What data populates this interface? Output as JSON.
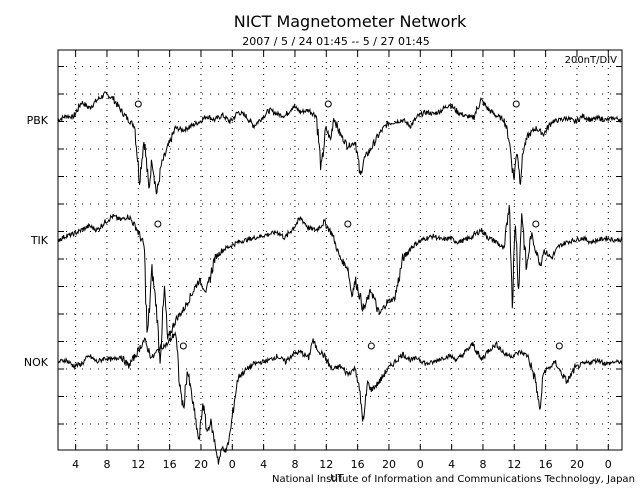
{
  "title": "NICT Magnetometer Network",
  "subtitle": "2007 / 5 / 24   01:45 --  5 / 27   01:45",
  "scale_label": "200nT/DIV",
  "footer": "National Institute of Information and Communications Technology, Japan",
  "footer_mark": "UT",
  "chart_data": {
    "type": "line",
    "title": "NICT Magnetometer Network",
    "subtitle": "2007 / 5 / 24   01:45 --  5 / 27   01:45",
    "x_unit": "UT",
    "x_range_hours": [
      0,
      72
    ],
    "x_tick_labels": [
      "4",
      "8",
      "12",
      "16",
      "20",
      "0",
      "4",
      "8",
      "12",
      "16",
      "20",
      "0",
      "4",
      "8",
      "12",
      "16",
      "20",
      "0"
    ],
    "x_tick_hours": [
      2.25,
      6.25,
      10.25,
      14.25,
      18.25,
      22.25,
      26.25,
      30.25,
      34.25,
      38.25,
      42.25,
      46.25,
      50.25,
      54.25,
      58.25,
      62.25,
      66.25,
      70.25
    ],
    "y_scale": "200nT/DIV",
    "grid": true,
    "series": [
      {
        "name": "PBK",
        "marker_hours": [
          10.25,
          34.5,
          58.5
        ],
        "points": [
          [
            0,
            0
          ],
          [
            1,
            4
          ],
          [
            2,
            3
          ],
          [
            3,
            18
          ],
          [
            4,
            12
          ],
          [
            5,
            20
          ],
          [
            6,
            26
          ],
          [
            7,
            22
          ],
          [
            8,
            10
          ],
          [
            9,
            0
          ],
          [
            9.8,
            -6
          ],
          [
            10.4,
            -60
          ],
          [
            11,
            -18
          ],
          [
            11.6,
            -70
          ],
          [
            12,
            -38
          ],
          [
            12.6,
            -75
          ],
          [
            13.2,
            -45
          ],
          [
            14,
            -28
          ],
          [
            15,
            -8
          ],
          [
            16,
            -10
          ],
          [
            17,
            -6
          ],
          [
            18,
            -2
          ],
          [
            19,
            4
          ],
          [
            20,
            0
          ],
          [
            21,
            5
          ],
          [
            22,
            -2
          ],
          [
            23,
            8
          ],
          [
            24,
            4
          ],
          [
            25,
            -6
          ],
          [
            26,
            2
          ],
          [
            27,
            10
          ],
          [
            28,
            6
          ],
          [
            29,
            4
          ],
          [
            30,
            14
          ],
          [
            31,
            8
          ],
          [
            32,
            10
          ],
          [
            33,
            4
          ],
          [
            33.6,
            -50
          ],
          [
            34.2,
            -8
          ],
          [
            34.8,
            -20
          ],
          [
            35.2,
            3
          ],
          [
            36,
            -14
          ],
          [
            37,
            -26
          ],
          [
            38,
            -22
          ],
          [
            38.6,
            -58
          ],
          [
            39,
            -40
          ],
          [
            40,
            -28
          ],
          [
            41,
            -14
          ],
          [
            42,
            -4
          ],
          [
            43,
            -2
          ],
          [
            44,
            0
          ],
          [
            45,
            -6
          ],
          [
            46,
            4
          ],
          [
            47,
            8
          ],
          [
            48,
            6
          ],
          [
            49,
            10
          ],
          [
            50,
            16
          ],
          [
            51,
            8
          ],
          [
            52,
            4
          ],
          [
            53,
            2
          ],
          [
            54,
            20
          ],
          [
            55,
            10
          ],
          [
            56,
            4
          ],
          [
            57,
            0
          ],
          [
            57.6,
            -20
          ],
          [
            58.2,
            -60
          ],
          [
            58.6,
            -28
          ],
          [
            59,
            -62
          ],
          [
            59.4,
            -30
          ],
          [
            60,
            -16
          ],
          [
            61,
            -8
          ],
          [
            62,
            -14
          ],
          [
            63,
            -2
          ],
          [
            64,
            0
          ],
          [
            65,
            2
          ],
          [
            66,
            -2
          ],
          [
            67,
            4
          ],
          [
            68,
            0
          ],
          [
            69,
            2
          ],
          [
            70,
            0
          ],
          [
            71,
            2
          ],
          [
            72,
            0
          ]
        ]
      },
      {
        "name": "TIK",
        "marker_hours": [
          12.75,
          37.0,
          61.0
        ],
        "points": [
          [
            0,
            0
          ],
          [
            1,
            4
          ],
          [
            2,
            6
          ],
          [
            3,
            10
          ],
          [
            4,
            14
          ],
          [
            5,
            10
          ],
          [
            6,
            18
          ],
          [
            7,
            24
          ],
          [
            8,
            20
          ],
          [
            9,
            24
          ],
          [
            10,
            12
          ],
          [
            11,
            -6
          ],
          [
            11.4,
            -100
          ],
          [
            12,
            -30
          ],
          [
            12.6,
            -70
          ],
          [
            13,
            -120
          ],
          [
            13.6,
            -50
          ],
          [
            14,
            -100
          ],
          [
            15,
            -80
          ],
          [
            16,
            -70
          ],
          [
            17,
            -55
          ],
          [
            18,
            -40
          ],
          [
            19,
            -52
          ],
          [
            20,
            -18
          ],
          [
            21,
            -10
          ],
          [
            22,
            -6
          ],
          [
            23,
            -2
          ],
          [
            24,
            0
          ],
          [
            25,
            2
          ],
          [
            26,
            4
          ],
          [
            27,
            6
          ],
          [
            28,
            8
          ],
          [
            29,
            2
          ],
          [
            30,
            12
          ],
          [
            31,
            22
          ],
          [
            32,
            12
          ],
          [
            33,
            10
          ],
          [
            34,
            18
          ],
          [
            35,
            6
          ],
          [
            35.5,
            -6
          ],
          [
            36,
            -18
          ],
          [
            37,
            -28
          ],
          [
            37.5,
            -55
          ],
          [
            38,
            -40
          ],
          [
            39,
            -70
          ],
          [
            40,
            -50
          ],
          [
            41,
            -75
          ],
          [
            42,
            -62
          ],
          [
            43,
            -58
          ],
          [
            44,
            -20
          ],
          [
            45,
            -8
          ],
          [
            46,
            -2
          ],
          [
            47,
            2
          ],
          [
            48,
            4
          ],
          [
            49,
            0
          ],
          [
            50,
            2
          ],
          [
            51,
            -2
          ],
          [
            52,
            0
          ],
          [
            53,
            4
          ],
          [
            54,
            10
          ],
          [
            55,
            2
          ],
          [
            56,
            -2
          ],
          [
            57,
            -10
          ],
          [
            57.6,
            40
          ],
          [
            58,
            -60
          ],
          [
            58.4,
            20
          ],
          [
            58.8,
            -50
          ],
          [
            59.2,
            30
          ],
          [
            59.8,
            -30
          ],
          [
            60.4,
            6
          ],
          [
            61,
            -10
          ],
          [
            61.6,
            -25
          ],
          [
            62,
            -10
          ],
          [
            63,
            -18
          ],
          [
            64,
            -6
          ],
          [
            65,
            -2
          ],
          [
            66,
            0
          ],
          [
            67,
            2
          ],
          [
            68,
            -2
          ],
          [
            69,
            0
          ],
          [
            70,
            2
          ],
          [
            71,
            0
          ],
          [
            72,
            0
          ]
        ]
      },
      {
        "name": "NOK",
        "marker_hours": [
          16.0,
          40.0,
          64.0
        ],
        "points": [
          [
            0,
            0
          ],
          [
            1,
            2
          ],
          [
            2,
            -4
          ],
          [
            3,
            -2
          ],
          [
            4,
            6
          ],
          [
            5,
            0
          ],
          [
            6,
            4
          ],
          [
            7,
            2
          ],
          [
            8,
            6
          ],
          [
            9,
            -4
          ],
          [
            10,
            8
          ],
          [
            11,
            22
          ],
          [
            12,
            4
          ],
          [
            13,
            14
          ],
          [
            14,
            18
          ],
          [
            15,
            30
          ],
          [
            15.5,
            -20
          ],
          [
            16,
            -48
          ],
          [
            16.5,
            -8
          ],
          [
            17,
            -30
          ],
          [
            17.5,
            -55
          ],
          [
            18,
            -80
          ],
          [
            18.5,
            -40
          ],
          [
            19,
            -70
          ],
          [
            19.5,
            -60
          ],
          [
            20,
            -80
          ],
          [
            20.5,
            -100
          ],
          [
            21,
            -85
          ],
          [
            21.5,
            -90
          ],
          [
            22,
            -70
          ],
          [
            22.5,
            -40
          ],
          [
            23,
            -15
          ],
          [
            24,
            -8
          ],
          [
            25,
            -2
          ],
          [
            26,
            0
          ],
          [
            27,
            2
          ],
          [
            28,
            6
          ],
          [
            29,
            0
          ],
          [
            30,
            8
          ],
          [
            31,
            10
          ],
          [
            32,
            4
          ],
          [
            32.5,
            22
          ],
          [
            33,
            14
          ],
          [
            34,
            6
          ],
          [
            35,
            -8
          ],
          [
            36,
            -4
          ],
          [
            37,
            -12
          ],
          [
            38,
            -6
          ],
          [
            38.5,
            -30
          ],
          [
            39,
            -62
          ],
          [
            39.5,
            -20
          ],
          [
            40,
            -28
          ],
          [
            41,
            -20
          ],
          [
            42,
            -8
          ],
          [
            43,
            0
          ],
          [
            44,
            8
          ],
          [
            45,
            2
          ],
          [
            46,
            4
          ],
          [
            47,
            -2
          ],
          [
            48,
            0
          ],
          [
            49,
            4
          ],
          [
            50,
            6
          ],
          [
            51,
            2
          ],
          [
            52,
            10
          ],
          [
            53,
            18
          ],
          [
            54,
            2
          ],
          [
            55,
            12
          ],
          [
            56,
            18
          ],
          [
            57,
            8
          ],
          [
            58,
            6
          ],
          [
            59,
            10
          ],
          [
            60,
            6
          ],
          [
            61,
            -20
          ],
          [
            61.5,
            -50
          ],
          [
            62,
            -10
          ],
          [
            63,
            -4
          ],
          [
            63.5,
            0
          ],
          [
            64,
            -8
          ],
          [
            65,
            -20
          ],
          [
            66,
            -6
          ],
          [
            67,
            -2
          ],
          [
            68,
            0
          ],
          [
            69,
            2
          ],
          [
            70,
            -2
          ],
          [
            71,
            0
          ],
          [
            72,
            0
          ]
        ]
      }
    ]
  }
}
